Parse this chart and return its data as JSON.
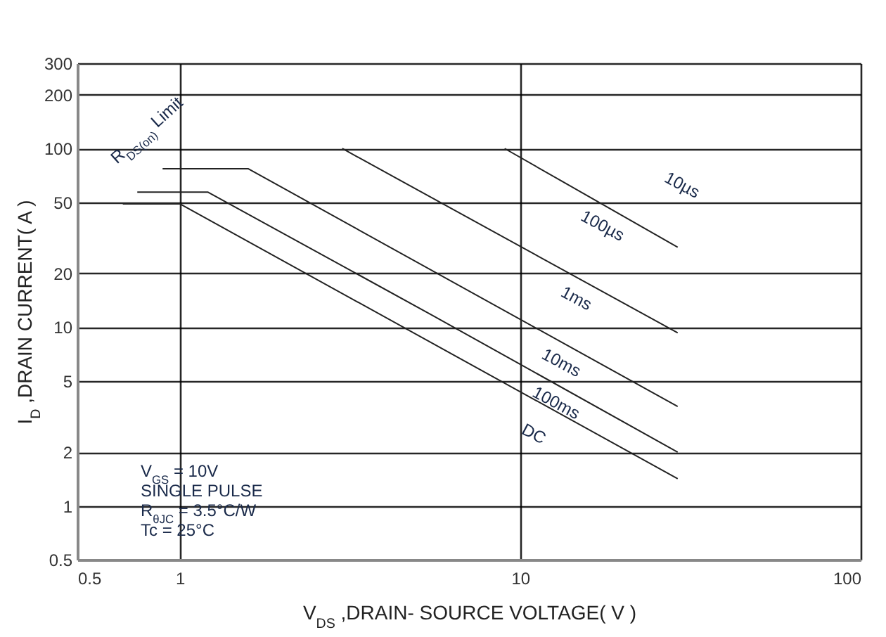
{
  "chart_data": {
    "type": "line",
    "xlabel": "V$_{DS}$ ,DRAIN- SOURCE VOLTAGE( V )",
    "ylabel": "I$_{D}$ ,DRAIN CURRENT( A )",
    "log": "xy",
    "grid": true,
    "legend": false,
    "line_style": "solid",
    "marker": "none",
    "xlim": [
      0.5,
      100
    ],
    "xticks": [
      0.5,
      1,
      10,
      100
    ],
    "ylim": [
      0.5,
      300
    ],
    "yticks": [
      0.5,
      1,
      2,
      5,
      10,
      20,
      50,
      100,
      200,
      300
    ],
    "series": [
      {
        "color": "#222222",
        "x": [
          9,
          29
        ],
        "values": [
          100,
          28
        ]
      },
      {
        "color": "#222222",
        "x": [
          3,
          29
        ],
        "values": [
          100,
          9.3
        ]
      },
      {
        "color": "#222222",
        "x": [
          0.89,
          1.59,
          29
        ],
        "values": [
          77,
          77,
          3.6
        ]
      },
      {
        "color": "#222222",
        "x": [
          0.75,
          1.21,
          5.5,
          29
        ],
        "values": [
          57,
          57,
          11.7,
          2.0
        ]
      },
      {
        "color": "#222222",
        "x": [
          0.68,
          1.0,
          29
        ],
        "values": [
          49,
          49,
          1.42
        ]
      }
    ],
    "annotations": [
      {
        "text": "R$_{DS(on)}$ Limit",
        "x": 0.89,
        "y": 77
      },
      {
        "text": "10µs",
        "x": 25,
        "y": 33
      },
      {
        "text": "100µs",
        "x": 18.5,
        "y": 45.6
      },
      {
        "text": "1ms",
        "x": 15.5,
        "y": 17.9
      },
      {
        "text": "10ms",
        "x": 14,
        "y": 7.8
      },
      {
        "text": "100ms",
        "x": 13.4,
        "y": 4.5
      },
      {
        "text": "DC",
        "x": 12.1,
        "y": 3.6
      },
      "V$_{GS}$ = 10V",
      "SINGLE PULSE",
      "R$_{θJC}$ = 3.5°C/W",
      "Tc = 25°C"
    ]
  }
}
